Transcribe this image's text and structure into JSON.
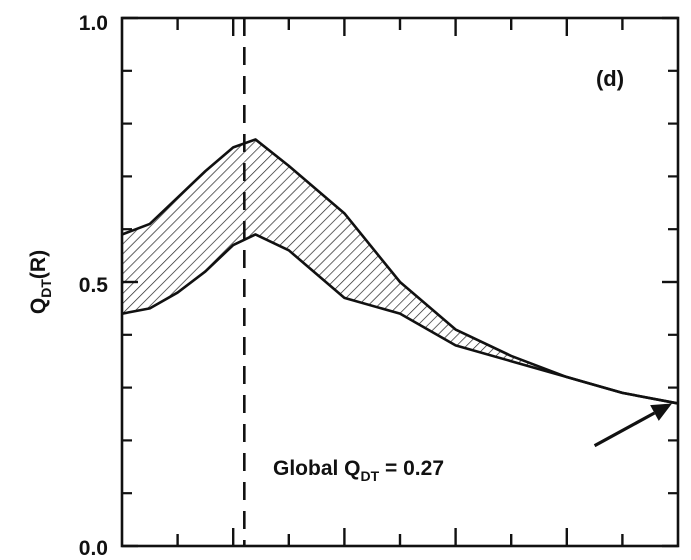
{
  "chart_data": {
    "type": "area",
    "panel_label": "(d)",
    "ylabel": {
      "main": "Q",
      "sub": "DT",
      "suffix": "(R)"
    },
    "xlabel": "",
    "ylim": [
      0,
      1
    ],
    "y_tick_labels": [
      "0.0",
      "0.5",
      "1.0"
    ],
    "y_major_ticks": [
      0,
      0.5,
      1
    ],
    "y_minor_ticks": [
      0.1,
      0.2,
      0.3,
      0.4,
      0.6,
      0.7,
      0.8,
      0.9
    ],
    "xlim": [
      0,
      1
    ],
    "x_ticks": [
      0.1,
      0.2,
      0.3,
      0.4,
      0.5,
      0.6,
      0.7,
      0.8,
      0.9
    ],
    "vertical_reference_line": 0.22,
    "band": {
      "x": [
        0.0,
        0.05,
        0.1,
        0.15,
        0.2,
        0.24,
        0.3,
        0.4,
        0.5,
        0.6,
        0.7,
        0.8,
        0.9,
        1.0
      ],
      "upper": [
        0.59,
        0.61,
        0.66,
        0.71,
        0.755,
        0.77,
        0.72,
        0.63,
        0.5,
        0.41,
        0.36,
        0.32,
        0.29,
        0.27
      ],
      "lower": [
        0.44,
        0.45,
        0.48,
        0.52,
        0.57,
        0.59,
        0.56,
        0.47,
        0.44,
        0.38,
        0.35,
        0.32,
        0.29,
        0.27
      ]
    },
    "annotation": {
      "prefix": "Global Q",
      "sub": "DT",
      "suffix": " = 0.27",
      "arrow_to": {
        "x": 1.0,
        "y": 0.27
      },
      "arrow_from": {
        "x": 0.85,
        "y": 0.19
      }
    }
  }
}
